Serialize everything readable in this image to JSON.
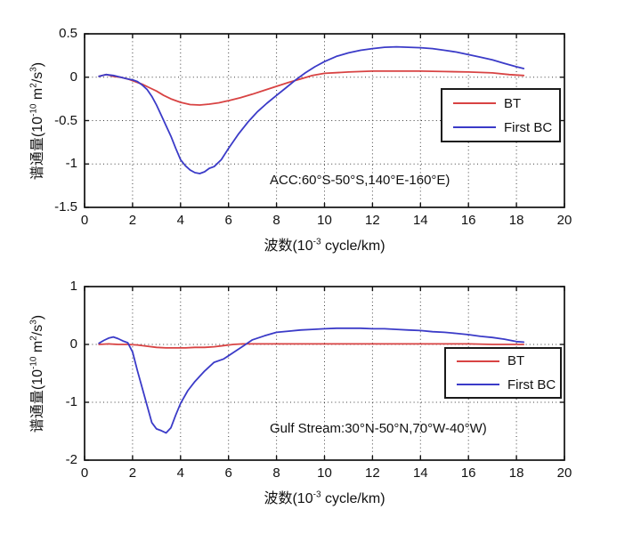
{
  "figure": {
    "background": "#ffffff"
  },
  "chart_data": [
    {
      "type": "line",
      "id": "acc",
      "annotation": "ACC:60°S-50°S,140°E-160°E)",
      "xlabel_segments": [
        {
          "t": "波数(10"
        },
        {
          "t": "-3",
          "sup": true
        },
        {
          "t": " cycle/km)"
        }
      ],
      "ylabel_segments": [
        {
          "t": "谱通量(10"
        },
        {
          "t": "-10",
          "sup": true
        },
        {
          "t": " m"
        },
        {
          "t": "2",
          "sup": true
        },
        {
          "t": "/s"
        },
        {
          "t": "3",
          "sup": true
        },
        {
          "t": ")"
        }
      ],
      "xlim": [
        0,
        20
      ],
      "ylim": [
        -1.5,
        0.5
      ],
      "xticks": [
        0,
        2,
        4,
        6,
        8,
        10,
        12,
        14,
        16,
        18,
        20
      ],
      "xtick_labels": [
        "0",
        "2",
        "4",
        "6",
        "8",
        "10",
        "12",
        "14",
        "16",
        "18",
        "20"
      ],
      "yticks": [
        0.5,
        0,
        -0.5,
        -1,
        -1.5
      ],
      "ytick_labels": [
        "0.5",
        "0",
        "-0.5",
        "-1",
        "-1.5"
      ],
      "grid": true,
      "legend": {
        "position": "inside-right",
        "entries": [
          {
            "label": "BT",
            "color": "#d84343"
          },
          {
            "label": "First BC",
            "color": "#3b3bc8"
          }
        ]
      },
      "series": [
        {
          "name": "BT",
          "color": "#d84343",
          "x": [
            0.6,
            0.9,
            1.2,
            1.5,
            1.8,
            2.1,
            2.4,
            2.7,
            3.0,
            3.3,
            3.6,
            4.0,
            4.4,
            4.8,
            5.2,
            5.6,
            6.0,
            6.5,
            7.0,
            7.5,
            8.0,
            8.5,
            9.0,
            9.5,
            10,
            11,
            12,
            13,
            14,
            15,
            16,
            17,
            17.7,
            18.3
          ],
          "y": [
            0.01,
            0.03,
            0.01,
            0.0,
            -0.02,
            -0.05,
            -0.08,
            -0.12,
            -0.16,
            -0.21,
            -0.25,
            -0.29,
            -0.315,
            -0.32,
            -0.31,
            -0.295,
            -0.27,
            -0.235,
            -0.195,
            -0.15,
            -0.105,
            -0.06,
            -0.02,
            0.02,
            0.045,
            0.06,
            0.07,
            0.07,
            0.07,
            0.065,
            0.06,
            0.05,
            0.03,
            0.02
          ]
        },
        {
          "name": "First BC",
          "color": "#3b3bc8",
          "x": [
            0.6,
            0.9,
            1.2,
            1.5,
            1.8,
            2.0,
            2.2,
            2.4,
            2.6,
            2.8,
            3.0,
            3.2,
            3.4,
            3.6,
            3.8,
            4.0,
            4.2,
            4.4,
            4.6,
            4.8,
            5.0,
            5.2,
            5.4,
            5.7,
            6.0,
            6.4,
            6.8,
            7.2,
            7.6,
            8.0,
            8.4,
            8.8,
            9.2,
            9.6,
            10.0,
            10.5,
            11.0,
            11.5,
            12.0,
            12.5,
            13.0,
            13.5,
            14.0,
            14.5,
            15.0,
            15.5,
            16.0,
            16.5,
            17.0,
            17.5,
            18.0,
            18.3
          ],
          "y": [
            0.01,
            0.03,
            0.02,
            0.0,
            -0.02,
            -0.03,
            -0.05,
            -0.09,
            -0.14,
            -0.22,
            -0.32,
            -0.44,
            -0.56,
            -0.68,
            -0.82,
            -0.95,
            -1.02,
            -1.07,
            -1.1,
            -1.11,
            -1.09,
            -1.05,
            -1.03,
            -0.95,
            -0.82,
            -0.66,
            -0.52,
            -0.4,
            -0.3,
            -0.21,
            -0.12,
            -0.03,
            0.05,
            0.12,
            0.18,
            0.24,
            0.28,
            0.31,
            0.33,
            0.345,
            0.35,
            0.345,
            0.34,
            0.33,
            0.31,
            0.29,
            0.26,
            0.23,
            0.2,
            0.16,
            0.12,
            0.1
          ]
        }
      ]
    },
    {
      "type": "line",
      "id": "gulf-stream",
      "annotation": "Gulf Stream:30°N-50°N,70°W-40°W)",
      "xlabel_segments": [
        {
          "t": "波数(10"
        },
        {
          "t": "-3",
          "sup": true
        },
        {
          "t": " cycle/km)"
        }
      ],
      "ylabel_segments": [
        {
          "t": "谱通量(10"
        },
        {
          "t": "-10",
          "sup": true
        },
        {
          "t": " m"
        },
        {
          "t": "2",
          "sup": true
        },
        {
          "t": "/s"
        },
        {
          "t": "3",
          "sup": true
        },
        {
          "t": ")"
        }
      ],
      "xlim": [
        0,
        20
      ],
      "ylim": [
        -2,
        1
      ],
      "xticks": [
        0,
        2,
        4,
        6,
        8,
        10,
        12,
        14,
        16,
        18,
        20
      ],
      "xtick_labels": [
        "0",
        "2",
        "4",
        "6",
        "8",
        "10",
        "12",
        "14",
        "16",
        "18",
        "20"
      ],
      "yticks": [
        1,
        0,
        -1,
        -2
      ],
      "ytick_labels": [
        "1",
        "0",
        "-1",
        "-2"
      ],
      "grid": true,
      "legend": {
        "position": "inside-right",
        "entries": [
          {
            "label": "BT",
            "color": "#d84343"
          },
          {
            "label": "First BC",
            "color": "#3b3bc8"
          }
        ]
      },
      "series": [
        {
          "name": "BT",
          "color": "#d84343",
          "x": [
            0.6,
            1.0,
            1.4,
            1.8,
            2.2,
            2.6,
            3.0,
            3.4,
            3.8,
            4.2,
            4.6,
            5.0,
            5.4,
            5.8,
            6.2,
            6.6,
            7.0,
            8.0,
            9.0,
            10,
            11,
            12,
            13,
            14,
            15,
            16,
            17,
            18,
            18.3
          ],
          "y": [
            0.0,
            0.01,
            0.0,
            0.0,
            -0.01,
            -0.03,
            -0.05,
            -0.06,
            -0.06,
            -0.06,
            -0.05,
            -0.05,
            -0.04,
            -0.02,
            0.0,
            0.01,
            0.01,
            0.01,
            0.01,
            0.01,
            0.01,
            0.01,
            0.01,
            0.01,
            0.01,
            0.01,
            0.0,
            0.0,
            0.0
          ]
        },
        {
          "name": "First BC",
          "color": "#3b3bc8",
          "x": [
            0.6,
            0.8,
            1.0,
            1.2,
            1.4,
            1.6,
            1.8,
            2.0,
            2.2,
            2.4,
            2.6,
            2.8,
            3.0,
            3.2,
            3.4,
            3.6,
            3.8,
            4.0,
            4.3,
            4.6,
            5.0,
            5.4,
            5.8,
            6.2,
            6.6,
            7.0,
            7.5,
            8.0,
            8.5,
            9.0,
            9.5,
            10,
            10.5,
            11,
            11.5,
            12,
            12.5,
            13,
            13.5,
            14,
            14.5,
            15,
            15.5,
            16,
            16.5,
            17,
            17.5,
            18,
            18.3
          ],
          "y": [
            0.02,
            0.07,
            0.11,
            0.13,
            0.1,
            0.06,
            0.03,
            -0.13,
            -0.45,
            -0.75,
            -1.05,
            -1.35,
            -1.46,
            -1.49,
            -1.53,
            -1.44,
            -1.22,
            -1.02,
            -0.8,
            -0.64,
            -0.46,
            -0.31,
            -0.25,
            -0.14,
            -0.03,
            0.08,
            0.15,
            0.21,
            0.23,
            0.25,
            0.26,
            0.27,
            0.28,
            0.28,
            0.28,
            0.27,
            0.27,
            0.26,
            0.25,
            0.24,
            0.22,
            0.21,
            0.19,
            0.17,
            0.14,
            0.12,
            0.09,
            0.05,
            0.04
          ]
        }
      ]
    }
  ]
}
